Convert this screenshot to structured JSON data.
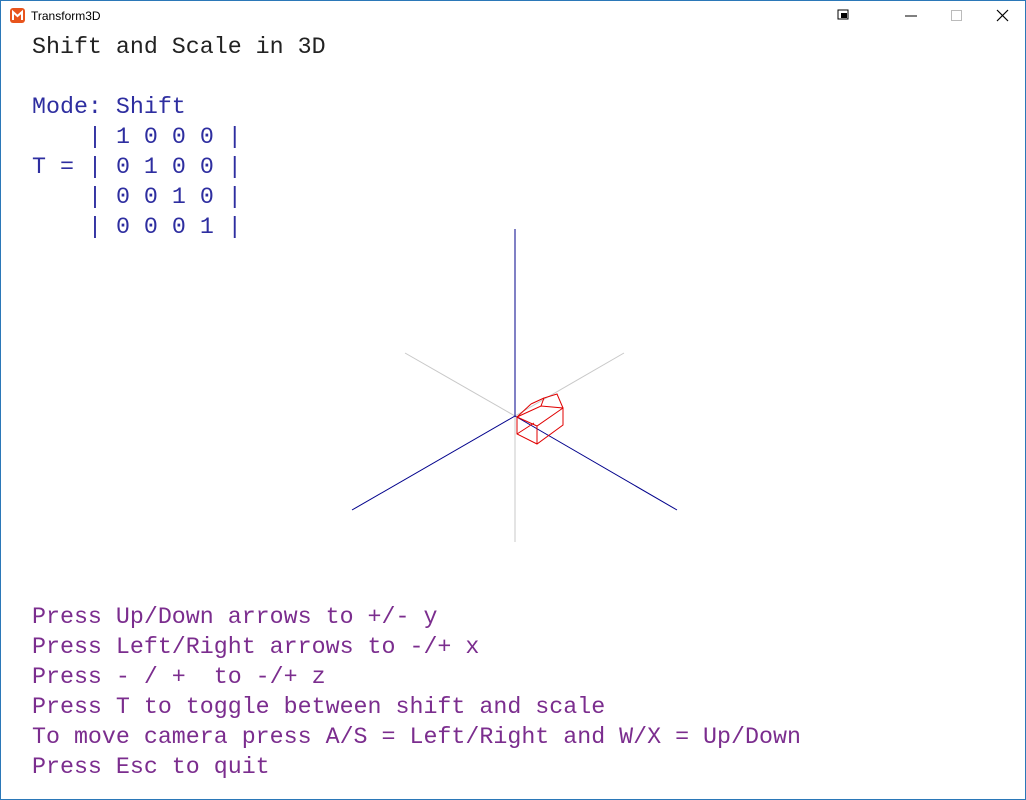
{
  "window": {
    "title": "Transform3D"
  },
  "heading": "Shift and Scale in 3D",
  "mode": "Mode: Shift",
  "matrix": {
    "label": "T =",
    "rows": [
      "| 1 0 0 0 |",
      "| 0 1 0 0 |",
      "| 0 0 1 0 |",
      "| 0 0 0 1 |"
    ]
  },
  "instructions": [
    "Press Up/Down arrows to +/- y",
    "Press Left/Right arrows to -/+ x",
    "Press - / +  to -/+ z",
    "Press T to toggle between shift and scale",
    "To move camera press A/S = Left/Right and W/X = Up/Down",
    "Press Esc to quit"
  ]
}
